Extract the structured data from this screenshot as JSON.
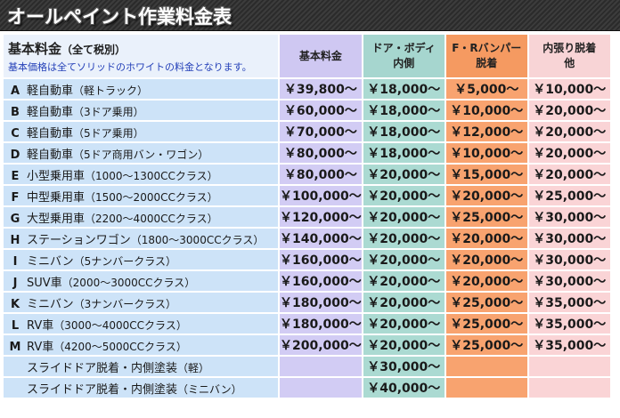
{
  "title": "オールペイント作業料金表",
  "header": {
    "main_title": "基本料金",
    "main_sub": "（全て税別）",
    "note": "基本価格は全てソリッドのホワイトの料金となります。",
    "col1": "基本料金",
    "col2_line1": "ドア・ボディ",
    "col2_line2": "内側",
    "col3_line1": "F・Rバンパー",
    "col3_line2": "脱着",
    "col4_line1": "内張り脱着",
    "col4_line2": "他"
  },
  "colors": {
    "name_bg": "#cde3f8",
    "col1_bg": "#d2ccf4",
    "col2_bg": "#abdad2",
    "col3_bg": "#f8a36f",
    "col4_bg": "#fad4d6"
  },
  "rows": [
    {
      "letter": "A",
      "name": "軽自動車",
      "detail": "（軽トラック）",
      "base": "￥39,800～",
      "door": "￥18,000～",
      "bumper": "￥5,000～",
      "interior": "￥10,000～"
    },
    {
      "letter": "B",
      "name": "軽自動車",
      "detail": "（3ドア乗用）",
      "base": "￥60,000～",
      "door": "￥18,000～",
      "bumper": "￥10,000～",
      "interior": "￥20,000～"
    },
    {
      "letter": "C",
      "name": "軽自動車",
      "detail": "（5ドア乗用）",
      "base": "￥70,000～",
      "door": "￥18,000～",
      "bumper": "￥12,000～",
      "interior": "￥20,000～"
    },
    {
      "letter": "D",
      "name": "軽自動車",
      "detail": "（5ドア商用バン・ワゴン）",
      "base": "￥80,000～",
      "door": "￥18,000～",
      "bumper": "￥10,000～",
      "interior": "￥20,000～"
    },
    {
      "letter": "E",
      "name": "小型乗用車",
      "detail": "（1000～1300CCクラス）",
      "base": "￥80,000～",
      "door": "￥20,000～",
      "bumper": "￥15,000～",
      "interior": "￥20,000～"
    },
    {
      "letter": "F",
      "name": "中型乗用車",
      "detail": "（1500～2000CCクラス）",
      "base": "￥100,000～",
      "door": "￥20,000～",
      "bumper": "￥20,000～",
      "interior": "￥25,000～"
    },
    {
      "letter": "G",
      "name": "大型乗用車",
      "detail": "（2200～4000CCクラス）",
      "base": "￥120,000～",
      "door": "￥20,000～",
      "bumper": "￥25,000～",
      "interior": "￥30,000～"
    },
    {
      "letter": "H",
      "name": "ステーションワゴン",
      "detail": "（1800～3000CCクラス）",
      "base": "￥140,000～",
      "door": "￥20,000～",
      "bumper": "￥20,000～",
      "interior": "￥30,000～"
    },
    {
      "letter": "I",
      "name": "ミニバン",
      "detail": "（5ナンバークラス）",
      "base": "￥160,000～",
      "door": "￥20,000～",
      "bumper": "￥20,000～",
      "interior": "￥30,000～"
    },
    {
      "letter": "J",
      "name": "SUV車",
      "detail": "（2000～3000CCクラス）",
      "base": "￥160,000～",
      "door": "￥20,000～",
      "bumper": "￥20,000～",
      "interior": "￥30,000～"
    },
    {
      "letter": "K",
      "name": "ミニバン",
      "detail": "（3ナンバークラス）",
      "base": "￥180,000～",
      "door": "￥20,000～",
      "bumper": "￥25,000～",
      "interior": "￥35,000～"
    },
    {
      "letter": "L",
      "name": "RV車",
      "detail": "（3000～4000CCクラス）",
      "base": "￥180,000～",
      "door": "￥20,000～",
      "bumper": "￥25,000～",
      "interior": "￥35,000～"
    },
    {
      "letter": "M",
      "name": "RV車",
      "detail": "（4200～5000CCクラス）",
      "base": "￥200,000～",
      "door": "￥20,000～",
      "bumper": "￥25,000～",
      "interior": "￥35,000～"
    },
    {
      "letter": "",
      "name": "スライドドア脱着・内側塗装",
      "detail": "（軽）",
      "base": "",
      "door": "￥30,000～",
      "bumper": "",
      "interior": ""
    },
    {
      "letter": "",
      "name": "スライドドア脱着・内側塗装",
      "detail": "（ミニバン）",
      "base": "",
      "door": "￥40,000～",
      "bumper": "",
      "interior": ""
    }
  ]
}
